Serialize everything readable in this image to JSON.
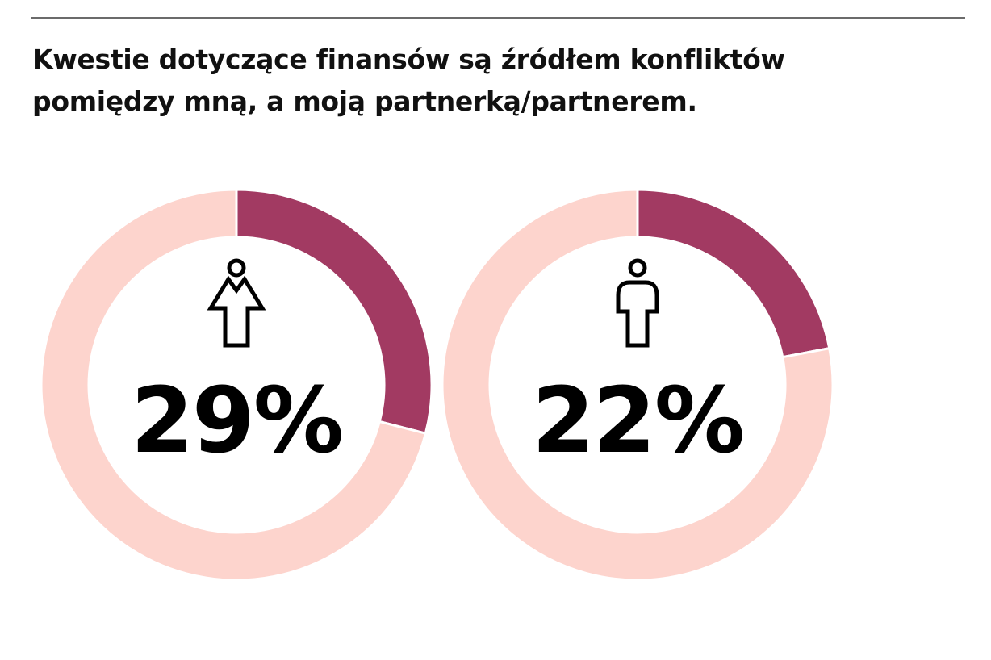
{
  "title": "Kwestie dotyczące finansów są źródłem konfliktów pomiędzy mną, a moją partnerką/partnerem.",
  "colors": {
    "highlight": "#a23a62",
    "remainder": "#fdd4cd",
    "text": "#000000",
    "rule": "#6b6b6b"
  },
  "chart_data": [
    {
      "type": "pie",
      "donut": true,
      "icon": "woman-icon",
      "label": "29%",
      "value": 29,
      "total": 100
    },
    {
      "type": "pie",
      "donut": true,
      "icon": "man-icon",
      "label": "22%",
      "value": 22,
      "total": 100
    }
  ]
}
